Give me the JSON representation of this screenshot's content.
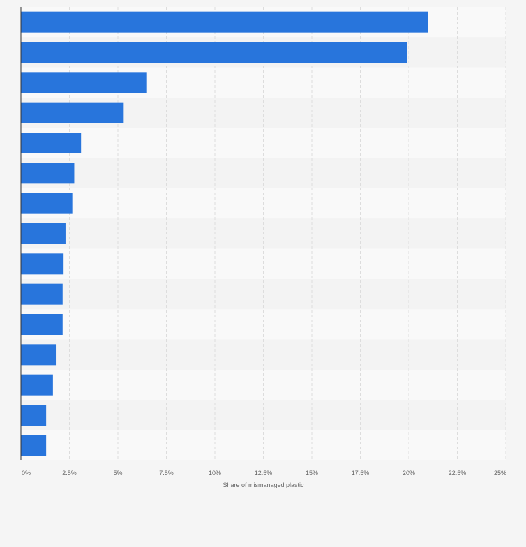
{
  "chart_data": {
    "type": "bar",
    "orientation": "horizontal",
    "title": "",
    "xlabel": "Share of mismanaged plastic",
    "ylabel": "",
    "xlim": [
      0,
      25
    ],
    "x_ticks": [
      0,
      2.5,
      5,
      7.5,
      10,
      12.5,
      15,
      17.5,
      20,
      22.5,
      25
    ],
    "x_tick_labels": [
      "0%",
      "2.5%",
      "5%",
      "7.5%",
      "10%",
      "12.5%",
      "15%",
      "17.5%",
      "20%",
      "22.5%",
      "25%"
    ],
    "categories": [
      "",
      "",
      "",
      "",
      "",
      "",
      "",
      "",
      "",
      "",
      "",
      "",
      "",
      "",
      ""
    ],
    "values": [
      21.0,
      19.9,
      6.5,
      5.3,
      3.1,
      2.75,
      2.65,
      2.3,
      2.2,
      2.15,
      2.15,
      1.8,
      1.65,
      1.3,
      1.3
    ],
    "grid": true,
    "legend": "none",
    "bar_color": "#2875dc",
    "band_colors": [
      "#f9f9f9",
      "#f3f3f3"
    ],
    "grid_color": "#dddddd",
    "axis_color": "#333333"
  }
}
